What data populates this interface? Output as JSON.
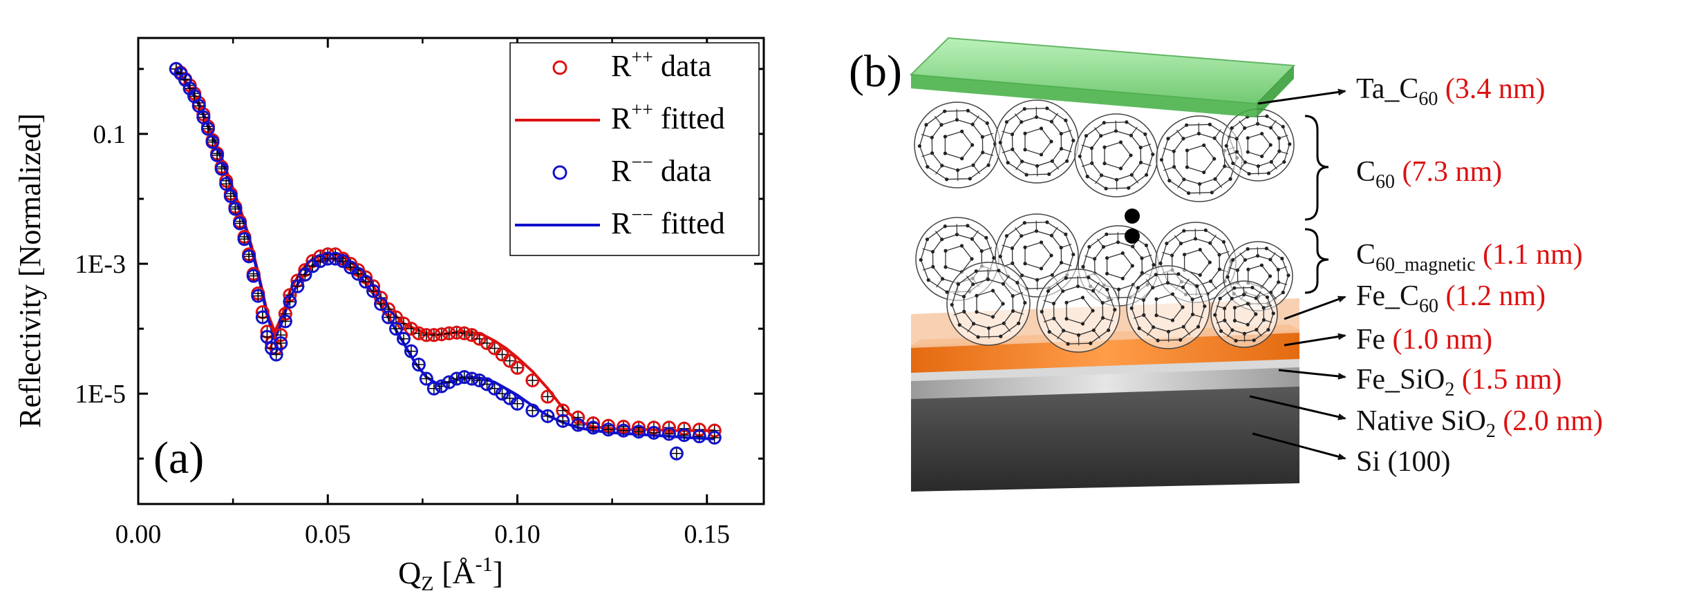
{
  "panel_a": {
    "panel_label": "(a)",
    "chart_data": {
      "type": "scatter",
      "ylabel": "Reflectivity [Normalized]",
      "xlabel_base": "Q",
      "xlabel_sub": "Z",
      "xlabel_unit_open": " [Å",
      "xlabel_unit_sup": "-1",
      "xlabel_unit_close": "]",
      "yscale": "log",
      "xlim": [
        0.0,
        0.165
      ],
      "ylim": [
        2e-07,
        3.0
      ],
      "grid": false,
      "legend_position": "top-right",
      "x_ticks": [
        {
          "v": 0.0,
          "label": "0.00"
        },
        {
          "v": 0.05,
          "label": "0.05"
        },
        {
          "v": 0.1,
          "label": "0.10"
        },
        {
          "v": 0.15,
          "label": "0.15"
        }
      ],
      "y_ticks": [
        {
          "v": 0.1,
          "label": "0.1"
        },
        {
          "v": 0.001,
          "label": "1E-3"
        },
        {
          "v": 1e-05,
          "label": "1E-5"
        }
      ],
      "legend": [
        {
          "kind": "marker",
          "color": "#dd1111",
          "base": "R",
          "sup": "++",
          "tail": " data"
        },
        {
          "kind": "line",
          "color": "#dd1111",
          "base": "R",
          "sup": "++",
          "tail": " fitted"
        },
        {
          "kind": "marker",
          "color": "#1111cc",
          "base": "R",
          "sup": "−−",
          "tail": " data"
        },
        {
          "kind": "line",
          "color": "#1111cc",
          "base": "R",
          "sup": "−−",
          "tail": " fitted"
        }
      ],
      "series": [
        {
          "name": "R++ data",
          "kind": "marker",
          "color": "#dd1111",
          "x": [
            0.01,
            0.0112,
            0.0124,
            0.0136,
            0.0148,
            0.016,
            0.0172,
            0.0184,
            0.0196,
            0.0208,
            0.022,
            0.0232,
            0.0244,
            0.0256,
            0.0268,
            0.028,
            0.0292,
            0.0304,
            0.0316,
            0.0328,
            0.034,
            0.0352,
            0.0364,
            0.0376,
            0.0388,
            0.04,
            0.042,
            0.044,
            0.046,
            0.048,
            0.05,
            0.052,
            0.054,
            0.056,
            0.058,
            0.06,
            0.062,
            0.064,
            0.066,
            0.068,
            0.07,
            0.072,
            0.074,
            0.076,
            0.078,
            0.08,
            0.082,
            0.084,
            0.086,
            0.088,
            0.09,
            0.092,
            0.094,
            0.096,
            0.098,
            0.1,
            0.104,
            0.108,
            0.112,
            0.116,
            0.12,
            0.124,
            0.128,
            0.132,
            0.136,
            0.14,
            0.144,
            0.148,
            0.152
          ],
          "y": [
            1.0,
            0.88,
            0.7,
            0.56,
            0.42,
            0.3,
            0.2,
            0.13,
            0.08,
            0.05,
            0.031,
            0.019,
            0.012,
            0.0075,
            0.0045,
            0.0026,
            0.0014,
            0.0007,
            0.00035,
            0.00018,
            9e-05,
            6e-05,
            5e-05,
            8e-05,
            0.00017,
            0.00033,
            0.00055,
            0.0008,
            0.0011,
            0.0013,
            0.0014,
            0.0014,
            0.0012,
            0.001,
            0.0008,
            0.00062,
            0.00045,
            0.0003,
            0.0002,
            0.00015,
            0.00012,
            0.0001,
            8.5e-05,
            8e-05,
            8e-05,
            8.2e-05,
            8.5e-05,
            8.7e-05,
            8.5e-05,
            8e-05,
            7e-05,
            6e-05,
            5e-05,
            4e-05,
            3.2e-05,
            2.5e-05,
            1.6e-05,
            9e-06,
            5.5e-06,
            4.3e-06,
            3.5e-06,
            3.2e-06,
            3.1e-06,
            3e-06,
            3e-06,
            3e-06,
            2.9e-06,
            2.8e-06,
            2.7e-06
          ]
        },
        {
          "name": "R++ fitted",
          "kind": "line",
          "color": "#dd1111",
          "x": [
            0.01,
            0.012,
            0.014,
            0.016,
            0.018,
            0.02,
            0.022,
            0.024,
            0.026,
            0.028,
            0.03,
            0.032,
            0.034,
            0.036,
            0.038,
            0.04,
            0.043,
            0.046,
            0.049,
            0.052,
            0.055,
            0.058,
            0.061,
            0.064,
            0.067,
            0.07,
            0.073,
            0.076,
            0.079,
            0.082,
            0.085,
            0.088,
            0.091,
            0.094,
            0.097,
            0.1,
            0.104,
            0.108,
            0.112,
            0.116,
            0.12,
            0.125,
            0.13,
            0.135,
            0.14,
            0.145,
            0.152
          ],
          "y": [
            1.0,
            0.72,
            0.48,
            0.3,
            0.16,
            0.085,
            0.043,
            0.021,
            0.01,
            0.0045,
            0.0018,
            0.0006,
            0.00018,
            9e-05,
            0.00016,
            0.00038,
            0.0008,
            0.0012,
            0.0014,
            0.0014,
            0.0012,
            0.00085,
            0.00055,
            0.0003,
            0.00018,
            0.00012,
            0.0001,
            8.5e-05,
            8e-05,
            8.5e-05,
            9e-05,
            8.8e-05,
            8e-05,
            6.5e-05,
            5e-05,
            3.6e-05,
            2.2e-05,
            1.2e-05,
            6e-06,
            3.8e-06,
            3.1e-06,
            2.9e-06,
            2.8e-06,
            2.8e-06,
            2.7e-06,
            2.7e-06,
            2.7e-06
          ]
        },
        {
          "name": "R-- data",
          "kind": "marker",
          "color": "#1111cc",
          "x": [
            0.01,
            0.0112,
            0.0124,
            0.0136,
            0.0148,
            0.016,
            0.0172,
            0.0184,
            0.0196,
            0.0208,
            0.022,
            0.0232,
            0.0244,
            0.0256,
            0.0268,
            0.028,
            0.0292,
            0.0304,
            0.0316,
            0.0328,
            0.034,
            0.0352,
            0.0364,
            0.0376,
            0.0388,
            0.04,
            0.042,
            0.044,
            0.046,
            0.048,
            0.05,
            0.052,
            0.054,
            0.056,
            0.058,
            0.06,
            0.062,
            0.064,
            0.066,
            0.068,
            0.07,
            0.072,
            0.074,
            0.076,
            0.078,
            0.08,
            0.082,
            0.084,
            0.086,
            0.088,
            0.09,
            0.092,
            0.094,
            0.096,
            0.098,
            0.1,
            0.104,
            0.108,
            0.112,
            0.116,
            0.12,
            0.124,
            0.128,
            0.132,
            0.136,
            0.14,
            0.142,
            0.144,
            0.148,
            0.152
          ],
          "y": [
            1.0,
            0.85,
            0.68,
            0.5,
            0.38,
            0.27,
            0.18,
            0.12,
            0.075,
            0.047,
            0.029,
            0.017,
            0.011,
            0.007,
            0.0042,
            0.0024,
            0.0013,
            0.00065,
            0.00032,
            0.00015,
            7.5e-05,
            5e-05,
            4e-05,
            6e-05,
            0.00013,
            0.00026,
            0.00045,
            0.00068,
            0.00092,
            0.0011,
            0.0012,
            0.0012,
            0.0011,
            0.00088,
            0.0007,
            0.00053,
            0.00038,
            0.00024,
            0.00015,
            0.0001,
            7e-05,
            4.5e-05,
            2.8e-05,
            1.7e-05,
            1.2e-05,
            1.3e-05,
            1.5e-05,
            1.7e-05,
            1.8e-05,
            1.7e-05,
            1.6e-05,
            1.4e-05,
            1.2e-05,
            1e-05,
            8.5e-06,
            7e-06,
            5.5e-06,
            4.5e-06,
            3.8e-06,
            3.3e-06,
            3e-06,
            2.8e-06,
            2.7e-06,
            2.6e-06,
            2.5e-06,
            2.4e-06,
            1.2e-06,
            2.3e-06,
            2.2e-06,
            2.1e-06
          ]
        },
        {
          "name": "R-- fitted",
          "kind": "line",
          "color": "#1111cc",
          "x": [
            0.01,
            0.012,
            0.014,
            0.016,
            0.018,
            0.02,
            0.022,
            0.024,
            0.026,
            0.028,
            0.03,
            0.032,
            0.034,
            0.036,
            0.038,
            0.04,
            0.043,
            0.046,
            0.049,
            0.052,
            0.055,
            0.058,
            0.061,
            0.064,
            0.067,
            0.07,
            0.073,
            0.076,
            0.079,
            0.082,
            0.085,
            0.088,
            0.091,
            0.094,
            0.097,
            0.1,
            0.104,
            0.108,
            0.112,
            0.116,
            0.12,
            0.125,
            0.13,
            0.135,
            0.14,
            0.145,
            0.152
          ],
          "y": [
            1.0,
            0.7,
            0.46,
            0.28,
            0.15,
            0.08,
            0.04,
            0.019,
            0.009,
            0.004,
            0.0016,
            0.00055,
            0.00016,
            7e-05,
            0.00013,
            0.0003,
            0.0006,
            0.00095,
            0.0012,
            0.0012,
            0.001,
            0.0007,
            0.00042,
            0.00023,
            0.00012,
            6e-05,
            3e-05,
            1.8e-05,
            1.4e-05,
            1.5e-05,
            1.7e-05,
            1.8e-05,
            1.7e-05,
            1.5e-05,
            1.2e-05,
            9.5e-06,
            6.5e-06,
            4.6e-06,
            3.6e-06,
            3e-06,
            2.7e-06,
            2.5e-06,
            2.4e-06,
            2.3e-06,
            2.2e-06,
            2.1e-06,
            2e-06
          ]
        }
      ]
    }
  },
  "panel_b": {
    "panel_label": "(b)",
    "labels": [
      {
        "key": "ta_c60",
        "parts": [
          [
            "n",
            "Ta_C"
          ],
          [
            "sub",
            "60"
          ],
          [
            "r",
            " (3.4 nm)"
          ]
        ]
      },
      {
        "key": "c60",
        "parts": [
          [
            "n",
            "C"
          ],
          [
            "sub",
            "60"
          ],
          [
            "r",
            " (7.3 nm)"
          ]
        ]
      },
      {
        "key": "c60_magnetic",
        "parts": [
          [
            "n",
            "C"
          ],
          [
            "sub",
            "60_magnetic"
          ],
          [
            "r",
            " (1.1 nm)"
          ]
        ]
      },
      {
        "key": "fe_c60",
        "parts": [
          [
            "n",
            "Fe_C"
          ],
          [
            "sub",
            "60"
          ],
          [
            "r",
            " (1.2 nm)"
          ]
        ]
      },
      {
        "key": "fe",
        "parts": [
          [
            "n",
            "Fe"
          ],
          [
            "r",
            " (1.0 nm)"
          ]
        ]
      },
      {
        "key": "fe_sio2",
        "parts": [
          [
            "n",
            "Fe_SiO"
          ],
          [
            "sub",
            "2"
          ],
          [
            "r",
            " (1.5 nm)"
          ]
        ]
      },
      {
        "key": "native_sio2",
        "parts": [
          [
            "n",
            "Native SiO"
          ],
          [
            "sub",
            "2"
          ],
          [
            "r",
            " (2.0 nm)"
          ]
        ]
      },
      {
        "key": "si",
        "parts": [
          [
            "n",
            "Si (100)"
          ]
        ]
      }
    ],
    "colors": {
      "text": "#111111",
      "thickness": "#dd1111",
      "ta_layer": "#6dd46d",
      "fe_layer": "#f07a20",
      "fe_c60_layer": "#f7c9a6",
      "sio2_layer": "#b8b8b8",
      "si_layer": "#4a4a4a"
    }
  }
}
